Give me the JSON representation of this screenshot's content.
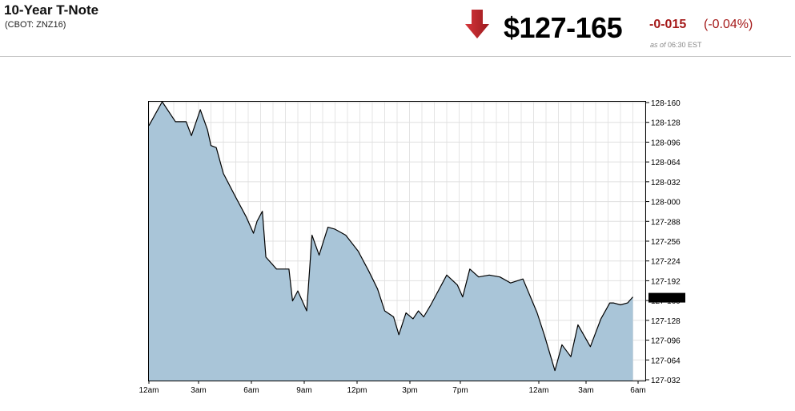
{
  "header": {
    "title": "10-Year T-Note",
    "subtitle": "(CBOT: ZNZ16)",
    "price": "$127-165",
    "change": "-0-015",
    "change_pct": "(-0.04%)",
    "as_of_prefix": "as of",
    "as_of_time": "06:30 EST",
    "direction_icon": "down-arrow-icon",
    "colors": {
      "down": "#a51a1a",
      "arrow": "#c0272d",
      "fill": "#a9c5d8",
      "line": "#000000"
    }
  },
  "chart_data": {
    "type": "area",
    "x_tick_labels": [
      "12am",
      "3am",
      "6am",
      "9am",
      "12pm",
      "3pm",
      "7pm",
      "12am",
      "3am",
      "6am"
    ],
    "y_tick_labels": [
      "128-160",
      "128-128",
      "128-096",
      "128-064",
      "128-032",
      "128-000",
      "127-288",
      "127-256",
      "127-224",
      "127-192",
      "127-160",
      "127-128",
      "127-096",
      "127-064",
      "127-032"
    ],
    "ylim": [
      127.1,
      128.5
    ],
    "current_value_label": "127-165",
    "current_value": 127.516,
    "grid": true,
    "series": [
      {
        "x": [
          0,
          0.75,
          1.5,
          2.1,
          2.4,
          2.9,
          3.3,
          3.5,
          3.8,
          4.2,
          4.9,
          5.5,
          5.9,
          6.1,
          6.4,
          6.6,
          7.2,
          7.9,
          8.1,
          8.4,
          8.9,
          9.2,
          9.6,
          10.1,
          10.5,
          11.1,
          11.8,
          12.4,
          12.9,
          13.3,
          13.8,
          14.1,
          14.5,
          14.9,
          15.2,
          15.5,
          15.9,
          16.2,
          16.8,
          17.4,
          17.7,
          18.1,
          18.6,
          19.2,
          19.8,
          20.4,
          21.1,
          21.9,
          22.3,
          22.9,
          23.3,
          23.8,
          24.2,
          24.9,
          25.5,
          26.0,
          26.2,
          26.6,
          27.0,
          27.3
        ],
        "values": [
          128.38,
          128.5,
          128.4,
          128.4,
          128.33,
          128.46,
          128.36,
          128.28,
          128.27,
          128.14,
          128.02,
          127.92,
          127.84,
          127.9,
          127.95,
          127.72,
          127.66,
          127.66,
          127.5,
          127.55,
          127.45,
          127.83,
          127.73,
          127.87,
          127.86,
          127.83,
          127.75,
          127.65,
          127.56,
          127.45,
          127.42,
          127.33,
          127.44,
          127.41,
          127.45,
          127.42,
          127.48,
          127.53,
          127.63,
          127.58,
          127.52,
          127.66,
          127.62,
          127.63,
          127.62,
          127.59,
          127.61,
          127.44,
          127.33,
          127.15,
          127.28,
          127.22,
          127.38,
          127.27,
          127.41,
          127.49,
          127.49,
          127.48,
          127.49,
          127.52
        ]
      }
    ]
  }
}
